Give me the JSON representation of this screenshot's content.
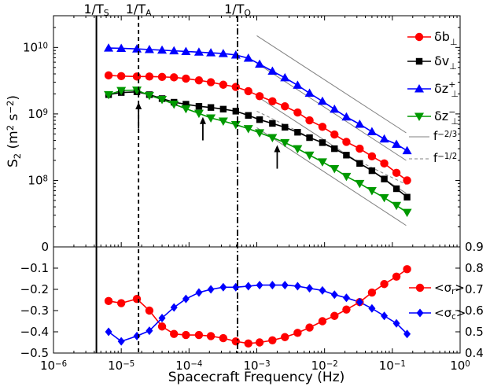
{
  "chart_data": [
    {
      "panel": "top",
      "type": "line",
      "xscale": "log",
      "yscale": "log",
      "xlim": [
        1e-06,
        1
      ],
      "ylim": [
        10000000,
        30000000000
      ],
      "ylabel": {
        "base": "S",
        "sub": "2",
        "open": " (m",
        "sup1": "2",
        "mid": " s",
        "sup2": "−2",
        "close": ")"
      },
      "y_ticks": [
        {
          "value": 100000000,
          "base": "10",
          "exp": "8"
        },
        {
          "value": 1000000000,
          "base": "10",
          "exp": "9"
        },
        {
          "value": 10000000000,
          "base": "10",
          "exp": "10"
        }
      ],
      "x_ticks": [
        {
          "value": 1e-06,
          "base": "10",
          "exp": "−6"
        },
        {
          "value": 1e-05,
          "base": "10",
          "exp": "−5"
        },
        {
          "value": 0.0001,
          "base": "10",
          "exp": "−4"
        },
        {
          "value": 0.001,
          "base": "10",
          "exp": "−3"
        },
        {
          "value": 0.01,
          "base": "10",
          "exp": "−2"
        },
        {
          "value": 0.1,
          "base": "10",
          "exp": "−1"
        },
        {
          "value": 1,
          "base": "10",
          "exp": "0"
        }
      ],
      "x": [
        6.5e-06,
        1e-05,
        1.7e-05,
        2.6e-05,
        4e-05,
        6e-05,
        9e-05,
        0.00014,
        0.00021,
        0.00032,
        0.00049,
        0.00075,
        0.0011,
        0.0017,
        0.0026,
        0.004,
        0.006,
        0.0093,
        0.014,
        0.021,
        0.033,
        0.05,
        0.076,
        0.115,
        0.165
      ],
      "series": [
        {
          "name": "δz⁺",
          "legend": {
            "base": "δz",
            "sup": "+",
            "sub": "⊥"
          },
          "color": "#0000ff",
          "marker": "triangle-up",
          "values": [
            9800000000,
            9700000000,
            9500000000,
            9300000000,
            9100000000,
            8900000000,
            8700000000,
            8500000000,
            8300000000,
            8100000000,
            7700000000,
            6900000000,
            5600000000,
            4400000000,
            3500000000,
            2700000000,
            2050000000,
            1550000000,
            1180000000,
            900000000,
            700000000,
            540000000,
            420000000,
            350000000,
            280000000
          ]
        },
        {
          "name": "δb⊥",
          "legend": {
            "base": "δb",
            "sup": "",
            "sub": "⊥"
          },
          "color": "#ff0000",
          "marker": "circle",
          "values": [
            3800000000,
            3700000000,
            3650000000,
            3650000000,
            3600000000,
            3550000000,
            3400000000,
            3200000000,
            3000000000,
            2750000000,
            2550000000,
            2200000000,
            1850000000,
            1550000000,
            1300000000,
            1050000000,
            800000000,
            640000000,
            490000000,
            380000000,
            300000000,
            230000000,
            180000000,
            130000000,
            100000000
          ]
        },
        {
          "name": "δv⊥",
          "legend": {
            "base": "δv",
            "sup": "",
            "sub": "⊥"
          },
          "color": "#000000",
          "marker": "square",
          "values": [
            1950000000,
            2100000000,
            2150000000,
            1950000000,
            1700000000,
            1500000000,
            1400000000,
            1300000000,
            1250000000,
            1180000000,
            1100000000,
            950000000,
            820000000,
            720000000,
            630000000,
            530000000,
            440000000,
            370000000,
            300000000,
            240000000,
            180000000,
            140000000,
            105000000,
            75000000,
            56000000
          ]
        },
        {
          "name": "δz⁻",
          "legend": {
            "base": "δz",
            "sup": "−",
            "sub": "⊥"
          },
          "color": "#009900",
          "marker": "triangle-down",
          "values": [
            1950000000,
            2250000000,
            2280000000,
            1900000000,
            1650000000,
            1400000000,
            1200000000,
            1020000000,
            870000000,
            780000000,
            690000000,
            600000000,
            520000000,
            440000000,
            370000000,
            300000000,
            240000000,
            190000000,
            150000000,
            115000000,
            90000000,
            70000000,
            55000000,
            42000000,
            33000000
          ]
        }
      ],
      "reference_lines": [
        {
          "name": "f^−2/3",
          "legend": {
            "base": "f",
            "sup": "−2/3"
          },
          "style": "solid",
          "color": "#808080",
          "segments": [
            {
              "x": [
                0.001,
                0.16
              ],
              "y": [
                15000000000,
                520000000
              ]
            },
            {
              "x": [
                0.001,
                0.16
              ],
              "y": [
                5800000000,
                200000000
              ]
            },
            {
              "x": [
                0.001,
                0.16
              ],
              "y": [
                1850000000,
                64000000
              ]
            },
            {
              "x": [
                0.001,
                0.16
              ],
              "y": [
                620000000,
                21000000
              ]
            }
          ]
        },
        {
          "name": "f^−1/2",
          "legend": {
            "base": "f",
            "sup": "−1/2"
          },
          "style": "dashed",
          "color": "#808080",
          "segments": [
            {
              "x": [
                0.001,
                0.16
              ],
              "y": [
                1100000000,
                87000000
              ]
            }
          ]
        }
      ],
      "vertical_lines": [
        {
          "label": {
            "base": "1/T",
            "sub": "S"
          },
          "x": 4.3e-06,
          "style": "solid"
        },
        {
          "label": {
            "base": "1/T",
            "sub": "A"
          },
          "x": 1.8e-05,
          "style": "dashed"
        },
        {
          "label": {
            "base": "1/T",
            "sub": "O"
          },
          "x": 0.00052,
          "style": "dashdot"
        }
      ],
      "arrows": [
        {
          "x": 1.8e-05,
          "y_from": 600000000,
          "y_to": 1500000000
        },
        {
          "x": 0.00016,
          "y_from": 400000000,
          "y_to": 900000000
        },
        {
          "x": 0.002,
          "y_from": 150000000,
          "y_to": 340000000
        }
      ]
    },
    {
      "panel": "bottom",
      "type": "line",
      "xscale": "log",
      "xlim": [
        1e-06,
        1
      ],
      "xlabel": "Spacecraft Frequency (Hz)",
      "left_axis": {
        "name": "<σr>",
        "ylim": [
          -0.5,
          0
        ],
        "ticks": [
          "−0.5",
          "−0.4",
          "−0.3",
          "−0.2",
          "−0.1",
          "0"
        ],
        "tick_values": [
          -0.5,
          -0.4,
          -0.3,
          -0.2,
          -0.1,
          0
        ],
        "color": "#ff00ff"
      },
      "right_axis": {
        "name": "<σc>",
        "ylim": [
          0.4,
          0.9
        ],
        "ticks": [
          "0.4",
          "0.5",
          "0.6",
          "0.7",
          "0.8",
          "0.9"
        ],
        "tick_values": [
          0.4,
          0.5,
          0.6,
          0.7,
          0.8,
          0.9
        ],
        "color": "#0000ff"
      },
      "x": [
        6.5e-06,
        1e-05,
        1.7e-05,
        2.6e-05,
        4e-05,
        6e-05,
        9e-05,
        0.00014,
        0.00021,
        0.00032,
        0.00049,
        0.00075,
        0.0011,
        0.0017,
        0.0026,
        0.004,
        0.006,
        0.0093,
        0.014,
        0.021,
        0.033,
        0.05,
        0.076,
        0.115,
        0.165
      ],
      "series": [
        {
          "name": "<σr>",
          "legend": {
            "base": "<σ",
            "sub": "r",
            "close": ">"
          },
          "axis": "left",
          "color": "#ff0000",
          "marker": "circle",
          "values": [
            -0.255,
            -0.265,
            -0.245,
            -0.3,
            -0.375,
            -0.41,
            -0.415,
            -0.415,
            -0.42,
            -0.43,
            -0.445,
            -0.455,
            -0.45,
            -0.44,
            -0.425,
            -0.405,
            -0.38,
            -0.35,
            -0.325,
            -0.295,
            -0.26,
            -0.215,
            -0.175,
            -0.14,
            -0.105
          ]
        },
        {
          "name": "<σc>",
          "legend": {
            "base": "<σ",
            "sub": "c",
            "close": ">"
          },
          "axis": "right",
          "color": "#0000ff",
          "marker": "diamond",
          "values": [
            0.5,
            0.455,
            0.48,
            0.505,
            0.565,
            0.615,
            0.655,
            0.685,
            0.7,
            0.71,
            0.71,
            0.715,
            0.72,
            0.72,
            0.72,
            0.715,
            0.705,
            0.695,
            0.675,
            0.66,
            0.64,
            0.61,
            0.575,
            0.54,
            0.49
          ]
        }
      ]
    }
  ]
}
